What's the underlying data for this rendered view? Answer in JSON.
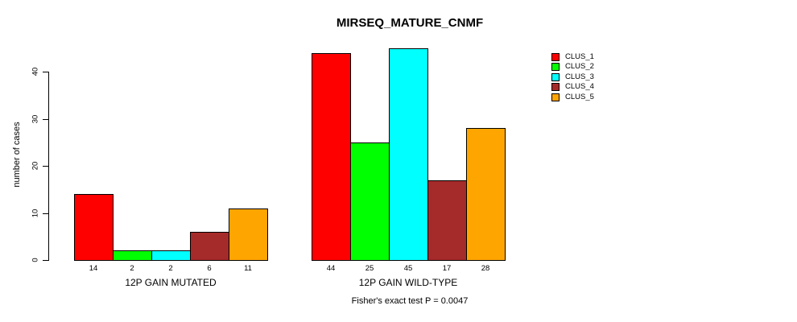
{
  "chart_data": {
    "type": "bar",
    "title": "MIRSEQ_MATURE_CNMF",
    "ylabel": "number of cases",
    "xlabel": "",
    "categories": [
      "12P GAIN MUTATED",
      "12P GAIN WILD-TYPE"
    ],
    "series": [
      {
        "name": "CLUS_1",
        "color": "#FF0000",
        "values": [
          14,
          44
        ]
      },
      {
        "name": "CLUS_2",
        "color": "#00FF00",
        "values": [
          2,
          25
        ]
      },
      {
        "name": "CLUS_3",
        "color": "#00FFFF",
        "values": [
          2,
          45
        ]
      },
      {
        "name": "CLUS_4",
        "color": "#A52A2A",
        "values": [
          6,
          17
        ]
      },
      {
        "name": "CLUS_5",
        "color": "#FFA500",
        "values": [
          11,
          28
        ]
      }
    ],
    "bar_value_labels": [
      [
        "14",
        "2",
        "2",
        "6",
        "11"
      ],
      [
        "44",
        "25",
        "45",
        "17",
        "28"
      ]
    ],
    "yticks": [
      0,
      10,
      20,
      30,
      40
    ],
    "ylim": [
      0,
      45
    ],
    "grid": false,
    "legend_position": "right",
    "annotation": "Fisher's exact test P = 0.0047",
    "axis_color": "#000000",
    "background_color": "#FFFFFF"
  }
}
